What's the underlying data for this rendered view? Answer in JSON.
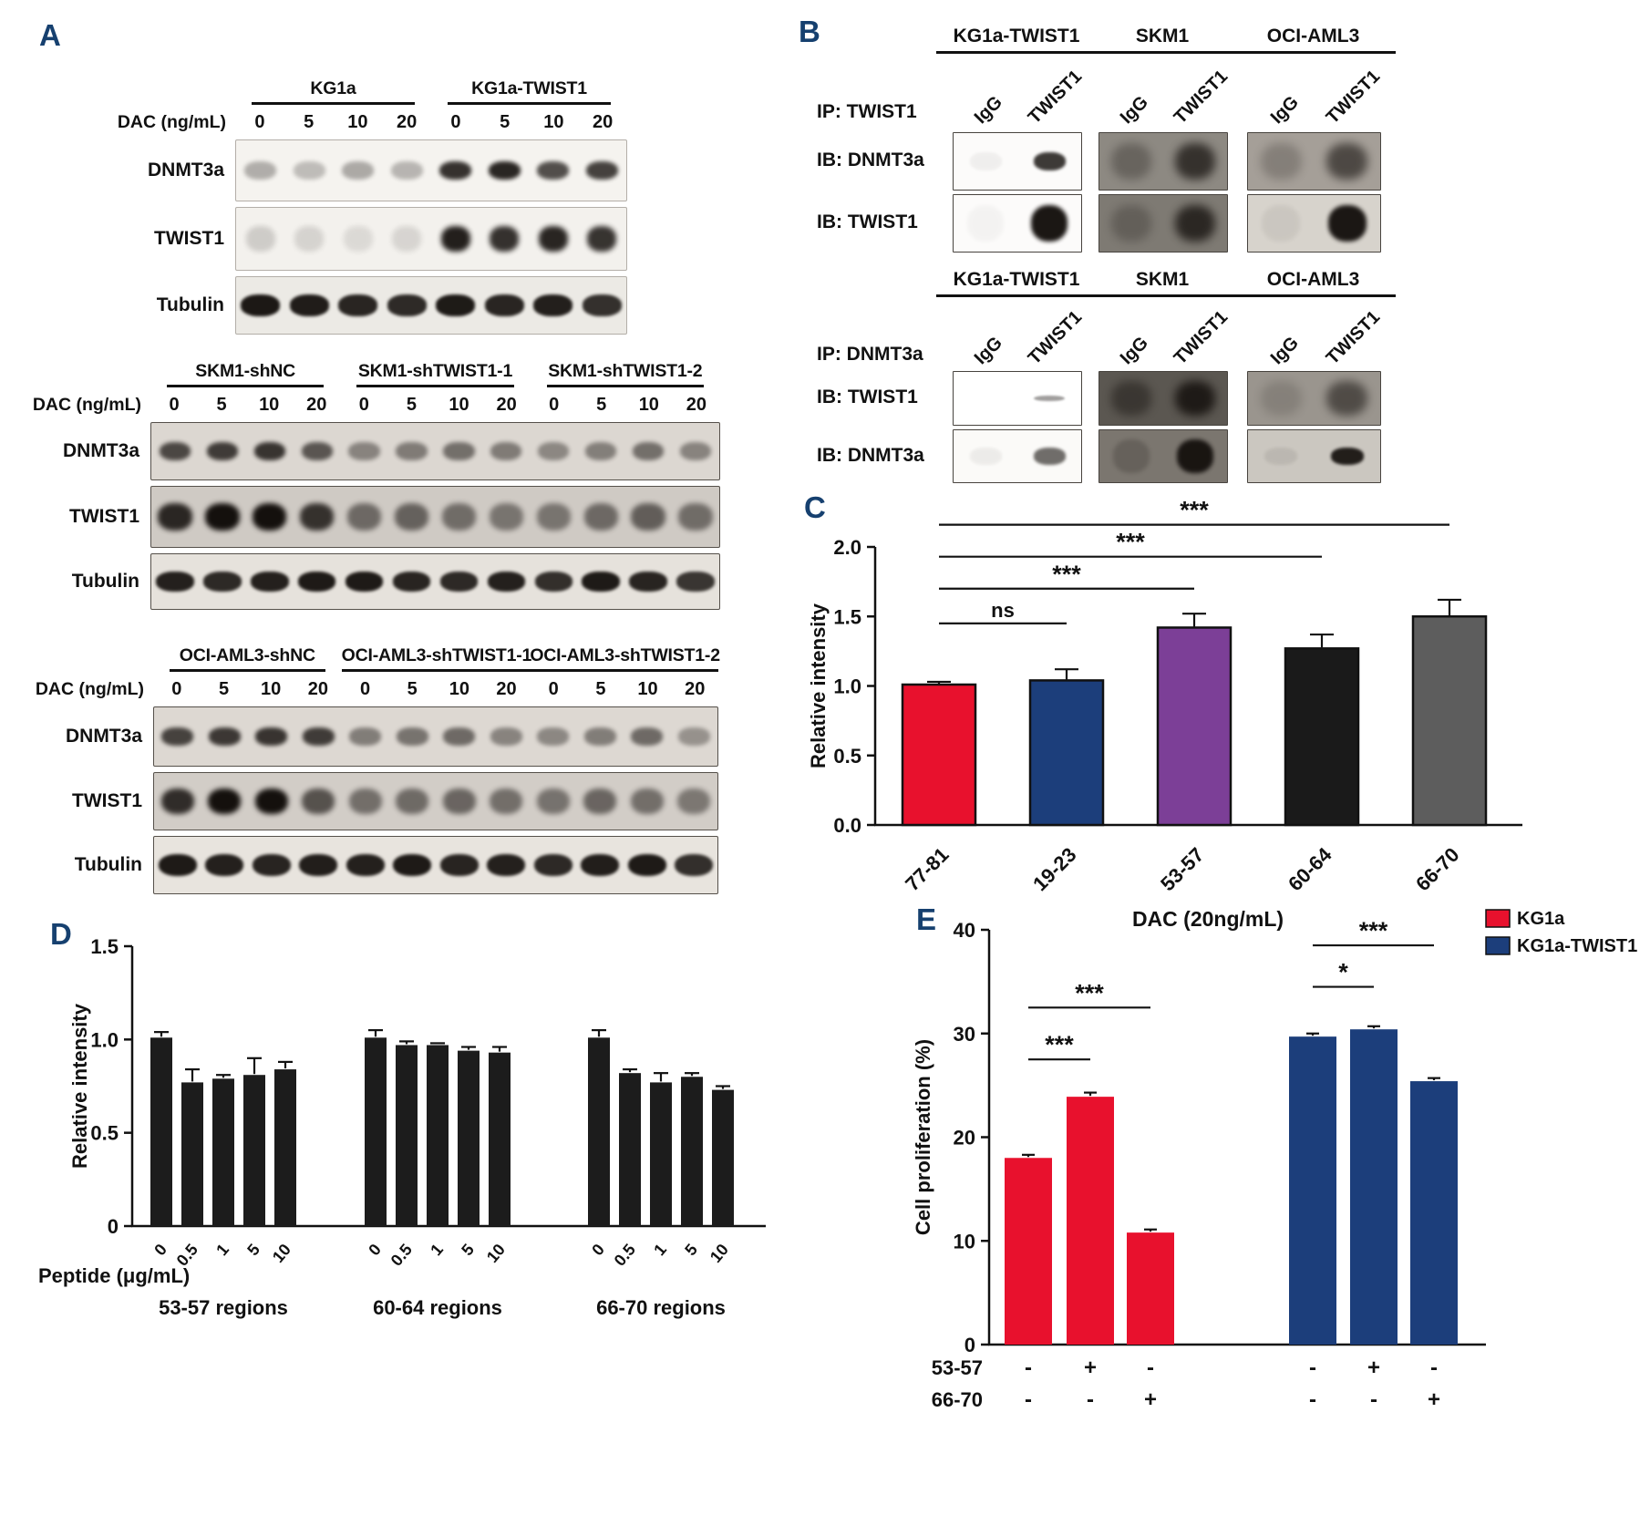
{
  "panelA": {
    "letter": "A",
    "groups": [
      {
        "headers": [
          {
            "text": "KG1a",
            "lanes": 4
          },
          {
            "text": "KG1a-TWIST1",
            "lanes": 4
          }
        ],
        "dose_label": "DAC (ng/mL)",
        "doses": [
          "0",
          "5",
          "10",
          "20",
          "0",
          "5",
          "10",
          "20"
        ],
        "rows": [
          {
            "label": "DNMT3a",
            "bg": "#f5f3ef",
            "border": "#b3aea8",
            "blur": 2.5,
            "band_h": 30,
            "band_w": 0.66,
            "bands": [
              0.3,
              0.24,
              0.32,
              0.27,
              0.85,
              0.9,
              0.72,
              0.78
            ]
          },
          {
            "label": "TWIST1",
            "bg": "#f3f1ed",
            "border": "#b3aea8",
            "blur": 3,
            "band_h": 40,
            "band_w": 0.6,
            "bands": [
              0.16,
              0.13,
              0.1,
              0.12,
              0.93,
              0.85,
              0.9,
              0.84
            ]
          },
          {
            "label": "Tubulin",
            "bg": "#eceae5",
            "border": "#b3aea8",
            "blur": 1.5,
            "band_h": 38,
            "band_w": 0.8,
            "bands": [
              0.96,
              0.94,
              0.9,
              0.88,
              0.95,
              0.9,
              0.93,
              0.85
            ]
          }
        ]
      },
      {
        "headers": [
          {
            "text": "SKM1-shNC",
            "lanes": 4
          },
          {
            "text": "SKM1-shTWIST1-1",
            "lanes": 4
          },
          {
            "text": "SKM1-shTWIST1-2",
            "lanes": 4
          }
        ],
        "dose_label": "DAC (ng/mL)",
        "doses": [
          "0",
          "5",
          "10",
          "20",
          "0",
          "5",
          "10",
          "20",
          "0",
          "5",
          "10",
          "20"
        ],
        "rows": [
          {
            "label": "DNMT3a",
            "bg": "#dcd7d1",
            "border": "#55504a",
            "blur": 2.5,
            "band_h": 32,
            "band_w": 0.66,
            "bands": [
              0.72,
              0.78,
              0.82,
              0.65,
              0.42,
              0.46,
              0.52,
              0.46,
              0.4,
              0.44,
              0.52,
              0.42
            ]
          },
          {
            "label": "TWIST1",
            "bg": "#cfcac4",
            "border": "#55504a",
            "blur": 3,
            "band_h": 44,
            "band_w": 0.72,
            "bands": [
              0.88,
              1,
              1,
              0.82,
              0.52,
              0.56,
              0.5,
              0.46,
              0.46,
              0.52,
              0.58,
              0.5
            ]
          },
          {
            "label": "Tubulin",
            "bg": "#e6e2dc",
            "border": "#55504a",
            "blur": 1.5,
            "band_h": 36,
            "band_w": 0.8,
            "bands": [
              0.92,
              0.88,
              0.92,
              0.95,
              0.95,
              0.9,
              0.88,
              0.92,
              0.85,
              0.95,
              0.9,
              0.82
            ]
          }
        ]
      },
      {
        "headers": [
          {
            "text": "OCI-AML3-shNC",
            "lanes": 4
          },
          {
            "text": "OCI-AML3-shTWIST1-1",
            "lanes": 4
          },
          {
            "text": "OCI-AML3-shTWIST1-2",
            "lanes": 4
          }
        ],
        "dose_label": "DAC (ng/mL)",
        "doses": [
          "0",
          "5",
          "10",
          "20",
          "0",
          "5",
          "10",
          "20",
          "0",
          "5",
          "10",
          "20"
        ],
        "rows": [
          {
            "label": "DNMT3a",
            "bg": "#ddd8d2",
            "border": "#55504a",
            "blur": 2.5,
            "band_h": 30,
            "band_w": 0.68,
            "bands": [
              0.75,
              0.8,
              0.82,
              0.78,
              0.45,
              0.5,
              0.55,
              0.42,
              0.4,
              0.45,
              0.55,
              0.35
            ]
          },
          {
            "label": "TWIST1",
            "bg": "#d2cdc7",
            "border": "#55504a",
            "blur": 3,
            "band_h": 46,
            "band_w": 0.7,
            "bands": [
              0.85,
              1,
              1,
              0.65,
              0.5,
              0.52,
              0.55,
              0.5,
              0.48,
              0.55,
              0.5,
              0.45
            ]
          },
          {
            "label": "Tubulin",
            "bg": "#e8e4de",
            "border": "#55504a",
            "blur": 1.5,
            "band_h": 40,
            "band_w": 0.82,
            "bands": [
              0.95,
              0.92,
              0.9,
              0.93,
              0.92,
              0.95,
              0.9,
              0.92,
              0.88,
              0.93,
              0.95,
              0.85
            ]
          }
        ]
      }
    ]
  },
  "panelB": {
    "letter": "B",
    "subpanels": [
      {
        "ip_label": "IP: TWIST1",
        "cell_lines": [
          "KG1a-TWIST1",
          "SKM1",
          "OCI-AML3"
        ],
        "lane_labels": [
          "IgG",
          "TWIST1"
        ],
        "rows": [
          {
            "label": "IB: DNMT3a",
            "boxes": [
              {
                "bg": "#fcfbfa",
                "kind": "band",
                "bands": [
                  0.05,
                  0.82
                ]
              },
              {
                "bg": "#8d8982",
                "kind": "smear",
                "bands": [
                  0.3,
                  0.72
                ]
              },
              {
                "bg": "#a59f98",
                "kind": "smear",
                "bands": [
                  0.22,
                  0.6
                ]
              }
            ]
          },
          {
            "label": "IB: TWIST1",
            "boxes": [
              {
                "bg": "#fcfbfa",
                "kind": "blob",
                "bands": [
                  0.03,
                  0.97
                ]
              },
              {
                "bg": "#7e7a73",
                "kind": "smear",
                "bands": [
                  0.25,
                  0.78
                ]
              },
              {
                "bg": "#d7d3cc",
                "kind": "blob",
                "bands": [
                  0.06,
                  0.96
                ]
              }
            ]
          }
        ]
      },
      {
        "ip_label": "IP: DNMT3a",
        "cell_lines": [
          "KG1a-TWIST1",
          "SKM1",
          "OCI-AML3"
        ],
        "lane_labels": [
          "IgG",
          "TWIST1"
        ],
        "rows": [
          {
            "label": "IB: TWIST1",
            "boxes": [
              {
                "bg": "#ffffff",
                "kind": "thin",
                "bands": [
                  0.02,
                  0.4
                ]
              },
              {
                "bg": "#5b5751",
                "kind": "smear",
                "bands": [
                  0.45,
                  0.85
                ]
              },
              {
                "bg": "#9a958e",
                "kind": "smear",
                "bands": [
                  0.15,
                  0.55
                ]
              }
            ]
          },
          {
            "label": "IB: DNMT3a",
            "boxes": [
              {
                "bg": "#fbfaf8",
                "kind": "band",
                "bands": [
                  0.06,
                  0.6
                ]
              },
              {
                "bg": "#7b766f",
                "kind": "blob",
                "bands": [
                  0.2,
                  0.95
                ]
              },
              {
                "bg": "#cbc7c0",
                "kind": "band",
                "bands": [
                  0.08,
                  0.92
                ]
              }
            ]
          }
        ]
      }
    ]
  },
  "chart_data": [
    {
      "id": "C",
      "letter": "C",
      "type": "bar",
      "ylabel": "Relative intensity",
      "ylim": [
        0,
        2.0
      ],
      "yticks": [
        "0.0",
        "0.5",
        "1.0",
        "1.5",
        "2.0"
      ],
      "categories": [
        "77-81",
        "19-23",
        "53-57",
        "60-64",
        "66-70"
      ],
      "values": [
        1.01,
        1.04,
        1.42,
        1.27,
        1.5
      ],
      "errors": [
        0.02,
        0.08,
        0.1,
        0.1,
        0.12
      ],
      "colors": [
        "#e8112d",
        "#1c3e7b",
        "#7c3f97",
        "#1a1a1a",
        "#5d5d5d"
      ],
      "significance": [
        {
          "from": 0,
          "to": 1,
          "label": "ns",
          "y": 1.45
        },
        {
          "from": 0,
          "to": 2,
          "label": "***",
          "y": 1.7
        },
        {
          "from": 0,
          "to": 3,
          "label": "***",
          "y": 1.93
        },
        {
          "from": 0,
          "to": 4,
          "label": "***",
          "y": 2.16
        }
      ]
    },
    {
      "id": "D",
      "letter": "D",
      "type": "bar",
      "ylabel": "Relative intensity",
      "xlabel": "Peptide (μg/mL)",
      "ylim": [
        0,
        1.5
      ],
      "yticks": [
        "0",
        "0.5",
        "1.0",
        "1.5"
      ],
      "bar_color": "#1c1c1c",
      "tick_labels": [
        "0",
        "0.5",
        "1",
        "5",
        "10"
      ],
      "series": [
        {
          "name": "53-57 regions",
          "values": [
            1.01,
            0.77,
            0.79,
            0.81,
            0.84
          ],
          "errors": [
            0.03,
            0.07,
            0.02,
            0.09,
            0.04
          ]
        },
        {
          "name": "60-64 regions",
          "values": [
            1.01,
            0.97,
            0.97,
            0.94,
            0.93
          ],
          "errors": [
            0.04,
            0.02,
            0.01,
            0.02,
            0.03
          ]
        },
        {
          "name": "66-70 regions",
          "values": [
            1.01,
            0.82,
            0.77,
            0.8,
            0.73
          ],
          "errors": [
            0.04,
            0.02,
            0.05,
            0.02,
            0.02
          ]
        }
      ]
    },
    {
      "id": "E",
      "letter": "E",
      "type": "bar",
      "title": "DAC (20ng/mL)",
      "ylabel": "Cell proliferation (%)",
      "ylim": [
        0,
        40
      ],
      "yticks": [
        "0",
        "10",
        "20",
        "30",
        "40"
      ],
      "legend": [
        {
          "label": "KG1a",
          "color": "#e8112d"
        },
        {
          "label": "KG1a-TWIST1",
          "color": "#1c3e7b"
        }
      ],
      "series": [
        {
          "name": "KG1a",
          "color": "#e8112d",
          "values": [
            18,
            23.9,
            10.8
          ],
          "errors": [
            0.3,
            0.4,
            0.3
          ]
        },
        {
          "name": "KG1a-TWIST1",
          "color": "#1c3e7b",
          "values": [
            29.7,
            30.4,
            25.4
          ],
          "errors": [
            0.3,
            0.3,
            0.3
          ]
        }
      ],
      "condition_rows": [
        {
          "label": "53-57",
          "values": [
            "-",
            "+",
            "-",
            "-",
            "+",
            "-"
          ]
        },
        {
          "label": "66-70",
          "values": [
            "-",
            "-",
            "+",
            "-",
            "-",
            "+"
          ]
        }
      ],
      "significance": [
        {
          "from": 0,
          "to": 1,
          "label": "***",
          "y": 27.5
        },
        {
          "from": 0,
          "to": 2,
          "label": "***",
          "y": 32.5
        },
        {
          "from": 3,
          "to": 4,
          "label": "*",
          "y": 34.5
        },
        {
          "from": 3,
          "to": 5,
          "label": "***",
          "y": 38.5
        }
      ]
    }
  ]
}
